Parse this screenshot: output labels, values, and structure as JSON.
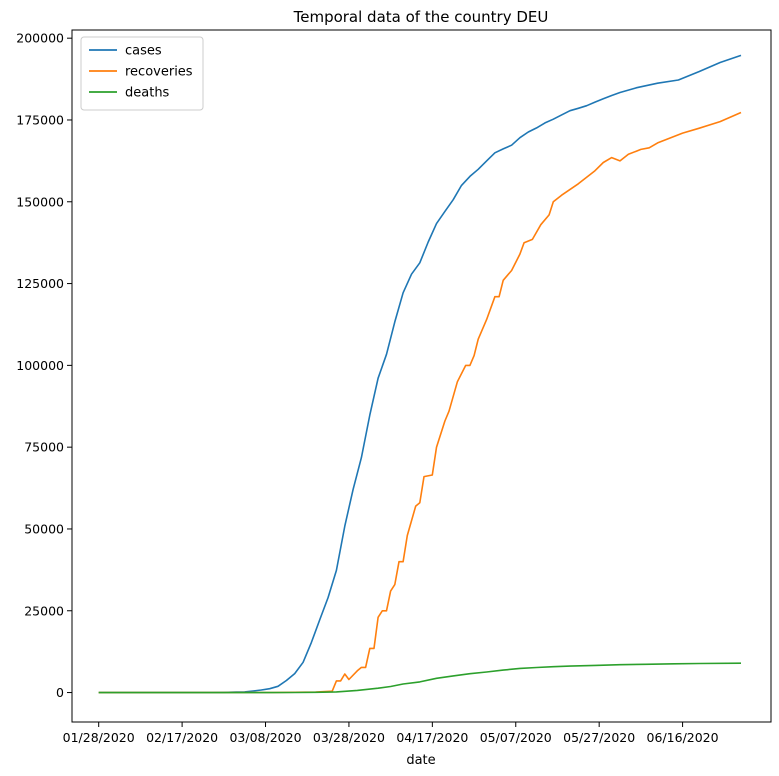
{
  "chart_data": {
    "type": "line",
    "title": "Temporal data of the country DEU",
    "xlabel": "date",
    "ylabel": "",
    "x_ticks": [
      "01/28/2020",
      "02/17/2020",
      "03/08/2020",
      "03/28/2020",
      "04/17/2020",
      "05/07/2020",
      "05/27/2020",
      "06/16/2020"
    ],
    "y_ticks": [
      0,
      25000,
      50000,
      75000,
      100000,
      125000,
      150000,
      175000,
      200000
    ],
    "xlim": [
      "01/28/2020",
      "07/01/2020"
    ],
    "ylim": [
      -9000,
      202500
    ],
    "legend_position": "upper-left",
    "series": [
      {
        "name": "cases",
        "color": "#1f77b4",
        "points": [
          [
            "01/28/2020",
            4
          ],
          [
            "02/10/2020",
            16
          ],
          [
            "02/24/2020",
            16
          ],
          [
            "02/27/2020",
            48
          ],
          [
            "03/01/2020",
            130
          ],
          [
            "03/03/2020",
            196
          ],
          [
            "03/05/2020",
            482
          ],
          [
            "03/07/2020",
            795
          ],
          [
            "03/09/2020",
            1176
          ],
          [
            "03/11/2020",
            1908
          ],
          [
            "03/13/2020",
            3675
          ],
          [
            "03/15/2020",
            5795
          ],
          [
            "03/17/2020",
            9257
          ],
          [
            "03/19/2020",
            15320
          ],
          [
            "03/21/2020",
            22213
          ],
          [
            "03/23/2020",
            29056
          ],
          [
            "03/25/2020",
            37323
          ],
          [
            "03/27/2020",
            50871
          ],
          [
            "03/29/2020",
            62095
          ],
          [
            "03/31/2020",
            71808
          ],
          [
            "04/02/2020",
            84794
          ],
          [
            "04/04/2020",
            96092
          ],
          [
            "04/06/2020",
            103375
          ],
          [
            "04/08/2020",
            113296
          ],
          [
            "04/10/2020",
            122171
          ],
          [
            "04/12/2020",
            127854
          ],
          [
            "04/14/2020",
            131359
          ],
          [
            "04/16/2020",
            137698
          ],
          [
            "04/18/2020",
            143342
          ],
          [
            "04/20/2020",
            147065
          ],
          [
            "04/22/2020",
            150648
          ],
          [
            "04/24/2020",
            154999
          ],
          [
            "04/26/2020",
            157770
          ],
          [
            "04/28/2020",
            159912
          ],
          [
            "04/30/2020",
            162496
          ],
          [
            "05/02/2020",
            164967
          ],
          [
            "05/04/2020",
            166152
          ],
          [
            "05/06/2020",
            167300
          ],
          [
            "05/08/2020",
            169575
          ],
          [
            "05/10/2020",
            171324
          ],
          [
            "05/12/2020",
            172576
          ],
          [
            "05/14/2020",
            174098
          ],
          [
            "05/16/2020",
            175233
          ],
          [
            "05/18/2020",
            176551
          ],
          [
            "05/20/2020",
            177850
          ],
          [
            "05/22/2020",
            178570
          ],
          [
            "05/24/2020",
            179364
          ],
          [
            "05/26/2020",
            180458
          ],
          [
            "05/28/2020",
            181482
          ],
          [
            "05/30/2020",
            182492
          ],
          [
            "06/01/2020",
            183410
          ],
          [
            "06/05/2020",
            184861
          ],
          [
            "06/10/2020",
            186233
          ],
          [
            "06/15/2020",
            187226
          ],
          [
            "06/20/2020",
            189817
          ],
          [
            "06/25/2020",
            192556
          ],
          [
            "06/30/2020",
            194725
          ]
        ]
      },
      {
        "name": "recoveries",
        "color": "#ff7f0e",
        "points": [
          [
            "01/28/2020",
            0
          ],
          [
            "03/10/2020",
            18
          ],
          [
            "03/20/2020",
            180
          ],
          [
            "03/24/2020",
            400
          ],
          [
            "03/25/2020",
            3547
          ],
          [
            "03/26/2020",
            3547
          ],
          [
            "03/27/2020",
            5673
          ],
          [
            "03/28/2020",
            4000
          ],
          [
            "03/30/2020",
            6658
          ],
          [
            "03/31/2020",
            7700
          ],
          [
            "04/01/2020",
            7700
          ],
          [
            "04/02/2020",
            13500
          ],
          [
            "04/03/2020",
            13500
          ],
          [
            "04/04/2020",
            23000
          ],
          [
            "04/05/2020",
            25000
          ],
          [
            "04/06/2020",
            25000
          ],
          [
            "04/07/2020",
            31000
          ],
          [
            "04/08/2020",
            33000
          ],
          [
            "04/09/2020",
            40000
          ],
          [
            "04/10/2020",
            40000
          ],
          [
            "04/11/2020",
            48000
          ],
          [
            "04/13/2020",
            57000
          ],
          [
            "04/14/2020",
            58000
          ],
          [
            "04/15/2020",
            66000
          ],
          [
            "04/17/2020",
            66500
          ],
          [
            "04/18/2020",
            75000
          ],
          [
            "04/20/2020",
            83000
          ],
          [
            "04/21/2020",
            86000
          ],
          [
            "04/23/2020",
            95000
          ],
          [
            "04/25/2020",
            100000
          ],
          [
            "04/26/2020",
            100000
          ],
          [
            "04/27/2020",
            103000
          ],
          [
            "04/28/2020",
            108000
          ],
          [
            "04/30/2020",
            114000
          ],
          [
            "05/02/2020",
            121000
          ],
          [
            "05/03/2020",
            121000
          ],
          [
            "05/04/2020",
            126000
          ],
          [
            "05/06/2020",
            129000
          ],
          [
            "05/08/2020",
            134000
          ],
          [
            "05/09/2020",
            137500
          ],
          [
            "05/11/2020",
            138500
          ],
          [
            "05/13/2020",
            143000
          ],
          [
            "05/15/2020",
            146000
          ],
          [
            "05/16/2020",
            150000
          ],
          [
            "05/18/2020",
            152000
          ],
          [
            "05/22/2020",
            155500
          ],
          [
            "05/26/2020",
            159500
          ],
          [
            "05/28/2020",
            162000
          ],
          [
            "05/30/2020",
            163500
          ],
          [
            "06/01/2020",
            162500
          ],
          [
            "06/03/2020",
            164500
          ],
          [
            "06/06/2020",
            166000
          ],
          [
            "06/08/2020",
            166500
          ],
          [
            "06/10/2020",
            168000
          ],
          [
            "06/13/2020",
            169500
          ],
          [
            "06/16/2020",
            171000
          ],
          [
            "06/20/2020",
            172500
          ],
          [
            "06/25/2020",
            174500
          ],
          [
            "06/30/2020",
            177300
          ]
        ]
      },
      {
        "name": "deaths",
        "color": "#2ca02c",
        "points": [
          [
            "01/28/2020",
            0
          ],
          [
            "03/08/2020",
            0
          ],
          [
            "03/15/2020",
            13
          ],
          [
            "03/20/2020",
            67
          ],
          [
            "03/25/2020",
            206
          ],
          [
            "03/30/2020",
            645
          ],
          [
            "04/04/2020",
            1342
          ],
          [
            "04/07/2020",
            1861
          ],
          [
            "04/10/2020",
            2607
          ],
          [
            "04/14/2020",
            3254
          ],
          [
            "04/18/2020",
            4352
          ],
          [
            "04/22/2020",
            5094
          ],
          [
            "04/26/2020",
            5750
          ],
          [
            "04/30/2020",
            6288
          ],
          [
            "05/04/2020",
            6866
          ],
          [
            "05/08/2020",
            7392
          ],
          [
            "05/12/2020",
            7662
          ],
          [
            "05/16/2020",
            7914
          ],
          [
            "05/20/2020",
            8090
          ],
          [
            "05/26/2020",
            8302
          ],
          [
            "06/01/2020",
            8500
          ],
          [
            "06/07/2020",
            8646
          ],
          [
            "06/14/2020",
            8783
          ],
          [
            "06/20/2020",
            8882
          ],
          [
            "06/30/2020",
            8985
          ]
        ]
      }
    ]
  }
}
